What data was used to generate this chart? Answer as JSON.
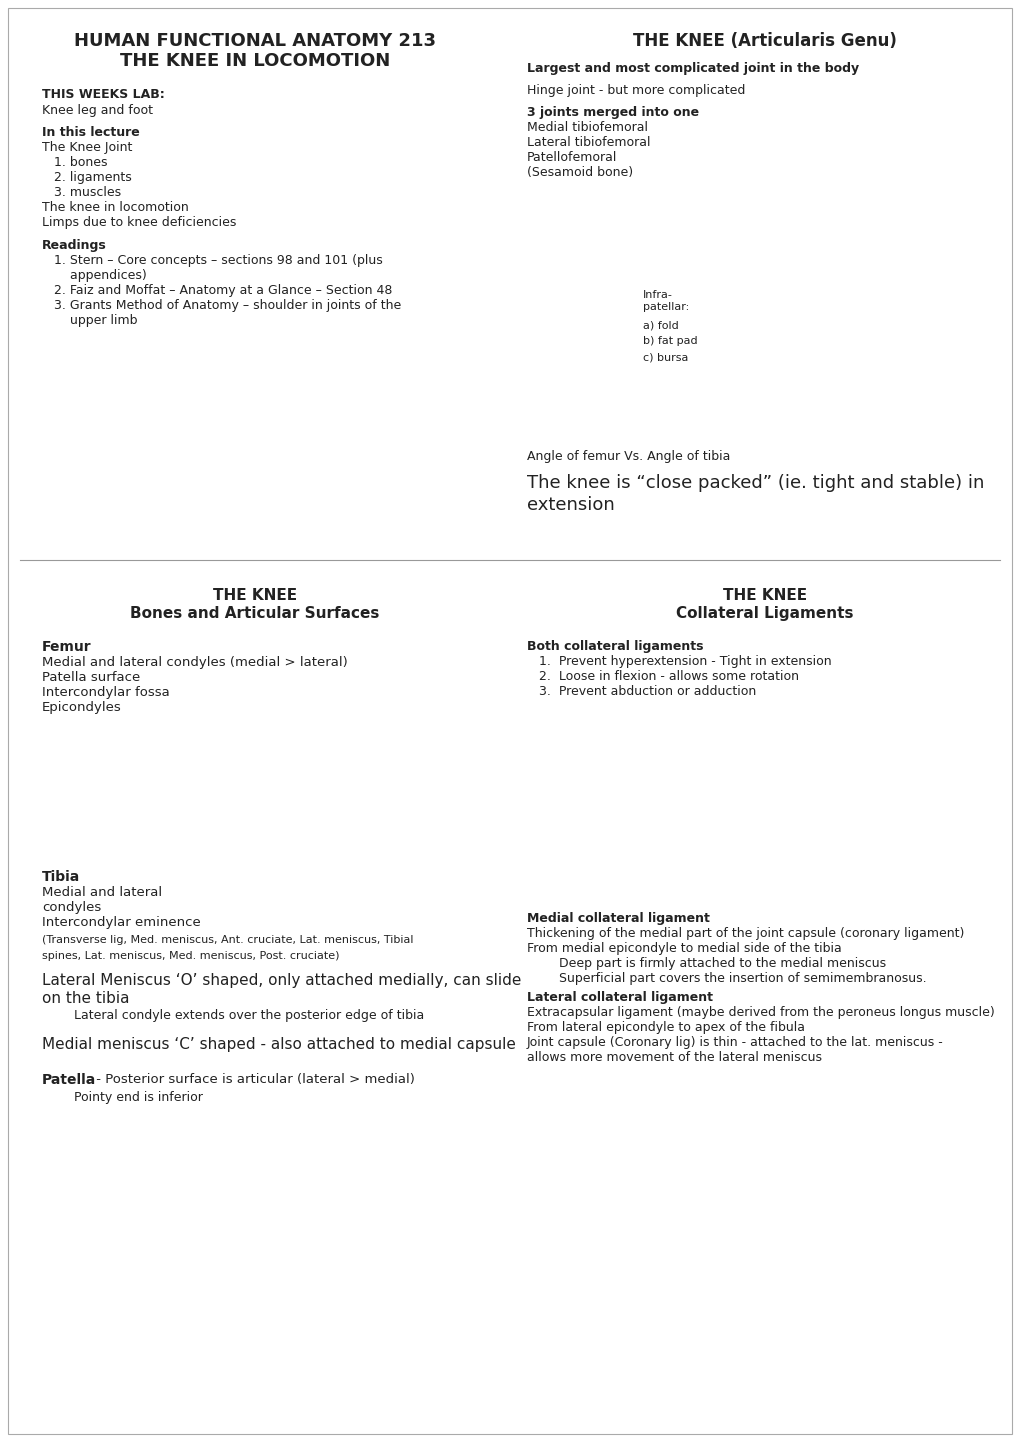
{
  "bg_color": "#ffffff",
  "top_left_title1": "HUMAN FUNCTIONAL ANATOMY 213",
  "top_left_title2": "THE KNEE IN LOCOMOTION",
  "this_weeks_lab_bold": "THIS WEEKS LAB:",
  "this_weeks_lab_body": "Knee leg and foot",
  "in_this_lecture_bold": "In this lecture",
  "in_this_lecture_body": [
    "The Knee Joint",
    "   1. bones",
    "   2. ligaments",
    "   3. muscles",
    "The knee in locomotion",
    "Limps due to knee deficiencies"
  ],
  "readings_bold": "Readings",
  "readings_body": [
    "   1. Stern – Core concepts – sections 98 and 101 (plus",
    "       appendices)",
    "   2. Faiz and Moffat – Anatomy at a Glance – Section 48",
    "   3. Grants Method of Anatomy – shoulder in joints of the",
    "       upper limb"
  ],
  "top_right_title": "THE KNEE (Articularis Genu)",
  "top_right_bold1": "Largest and most complicated joint in the body",
  "top_right_body1": "Hinge joint - but more complicated",
  "top_right_bold2": "3 joints merged into one",
  "top_right_body2": [
    "Medial tibiofemoral",
    "Lateral tibiofemoral",
    "Patellofemoral",
    "(Sesamoid bone)"
  ],
  "infra_label": "Infra-\npatellar:",
  "infra_a": "a) fold",
  "infra_b": "b) fat pad",
  "infra_c": "c) bursa",
  "angle_text": "Angle of femur Vs. Angle of tibia",
  "close_packed_text": "The knee is “close packed” (ie. tight and stable) in\nextension",
  "bottom_left_title1": "THE KNEE",
  "bottom_left_title2": "Bones and Articular Surfaces",
  "femur_bold": "Femur",
  "femur_body": [
    "Medial and lateral condyles (medial > lateral)",
    "Patella surface",
    "Intercondylar fossa",
    "Epicondyles"
  ],
  "tibia_bold": "Tibia",
  "tibia_body": [
    "Medial and lateral",
    "condyles",
    "Intercondylar eminence"
  ],
  "tibia_small1": "(Transverse lig, Med. meniscus, Ant. cruciate, Lat. meniscus, Tibial",
  "tibia_small2": "spines, Lat. meniscus, Med. meniscus, Post. cruciate)",
  "lateral_meniscus_line1": "Lateral Meniscus ‘O’ shaped, only attached medially, can slide",
  "lateral_meniscus_line2": "on the tibia",
  "lateral_condyle_text": "        Lateral condyle extends over the posterior edge of tibia",
  "medial_meniscus_text": "Medial meniscus ‘C’ shaped - also attached to medial capsule",
  "patella_bold": "Patella",
  "patella_body": " - Posterior surface is articular (lateral > medial)",
  "patella_sub": "        Pointy end is inferior",
  "bottom_right_title1": "THE KNEE",
  "bottom_right_title2": "Collateral Ligaments",
  "both_collateral_bold": "Both collateral ligaments",
  "both_collateral_body": [
    "   1.  Prevent hyperextension - Tight in extension",
    "   2.  Loose in flexion - allows some rotation",
    "   3.  Prevent abduction or adduction"
  ],
  "medial_collateral_bold": "Medial collateral ligament",
  "medial_collateral_body": [
    "Thickening of the medial part of the joint capsule (coronary ligament)",
    "From medial epicondyle to medial side of the tibia",
    "        Deep part is firmly attached to the medial meniscus",
    "        Superficial part covers the insertion of semimembranosus."
  ],
  "lateral_collateral_bold": "Lateral collateral ligament",
  "lateral_collateral_body": [
    "Extracapsular ligament (maybe derived from the peroneus longus muscle)",
    "From lateral epicondyle to apex of the fibula",
    "Joint capsule (Coronary lig) is thin - attached to the lat. meniscus -",
    "allows more movement of the lateral meniscus"
  ]
}
